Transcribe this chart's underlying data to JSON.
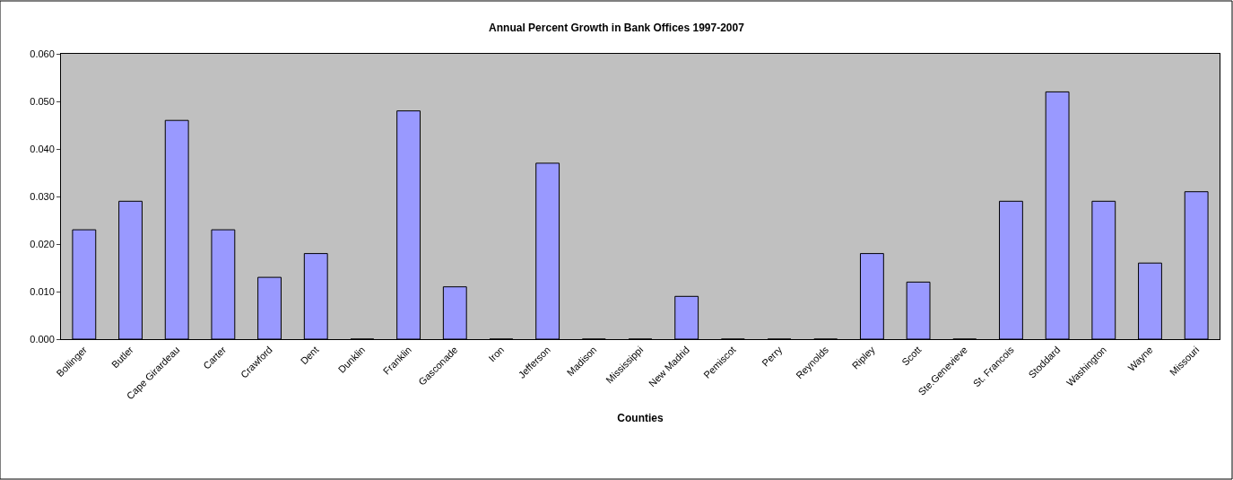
{
  "chart_data": {
    "type": "bar",
    "title": "Annual Percent Growth in Bank Offices 1997-2007",
    "xlabel": "Counties",
    "categories": [
      "Bollinger",
      "Butler",
      "Cape Girardeau",
      "Carter",
      "Crawford",
      "Dent",
      "Dunklin",
      "Franklin",
      "Gasconade",
      "Iron",
      "Jefferson",
      "Madison",
      "Mississippi",
      "New Madrid",
      "Pemiscot",
      "Perry",
      "Reynolds",
      "Ripley",
      "Scott",
      "Ste.Genevieve",
      "St. Francois",
      "Stoddard",
      "Washington",
      "Wayne",
      "Missouri"
    ],
    "values": [
      0.023,
      0.029,
      0.046,
      0.023,
      0.013,
      0.018,
      0,
      0.048,
      0.011,
      0,
      0.037,
      0,
      0,
      0.009,
      0,
      0,
      0,
      0.018,
      0.012,
      0,
      0.029,
      0.052,
      0.029,
      0.016,
      0.031
    ],
    "color": "#9999ff",
    "ylim": [
      0,
      0.06
    ],
    "yticks": [
      {
        "value": 0,
        "label": "0.000"
      },
      {
        "value": 0.01,
        "label": "0.010"
      },
      {
        "value": 0.02,
        "label": "0.020"
      },
      {
        "value": 0.03,
        "label": "0.030"
      },
      {
        "value": 0.04,
        "label": "0.040"
      },
      {
        "value": 0.05,
        "label": "0.050"
      },
      {
        "value": 0.06,
        "label": "0.060"
      }
    ],
    "grid": false
  }
}
